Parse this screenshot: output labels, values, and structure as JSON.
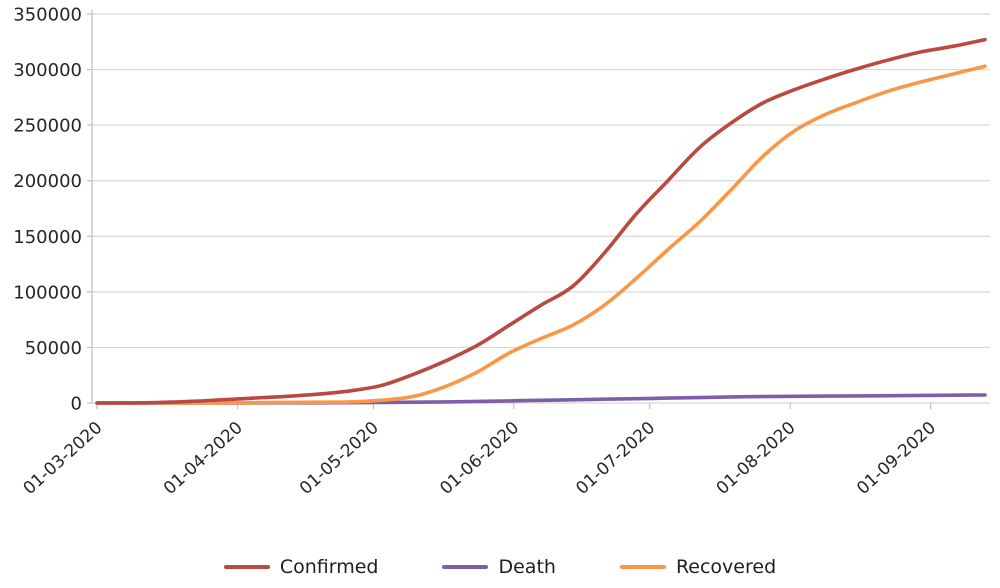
{
  "chart_data": {
    "type": "line",
    "title": "",
    "xlabel": "",
    "ylabel": "",
    "grid": "horizontal",
    "legend_position": "bottom",
    "ylim": [
      0,
      350000
    ],
    "y_ticks": [
      0,
      50000,
      100000,
      150000,
      200000,
      250000,
      300000,
      350000
    ],
    "x_tick_labels": [
      "01-03-2020",
      "01-04-2020",
      "01-05-2020",
      "01-06-2020",
      "01-07-2020",
      "01-08-2020",
      "01-09-2020"
    ],
    "x_range": [
      "01-03-2020",
      "13-09-2020"
    ],
    "dates": [
      "01-03-2020",
      "08-03-2020",
      "15-03-2020",
      "22-03-2020",
      "29-03-2020",
      "05-04-2020",
      "12-04-2020",
      "19-04-2020",
      "26-04-2020",
      "03-05-2020",
      "10-05-2020",
      "17-05-2020",
      "24-05-2020",
      "31-05-2020",
      "07-06-2020",
      "14-06-2020",
      "21-06-2020",
      "28-06-2020",
      "05-07-2020",
      "12-07-2020",
      "19-07-2020",
      "26-07-2020",
      "02-08-2020",
      "09-08-2020",
      "16-08-2020",
      "23-08-2020",
      "30-08-2020",
      "06-09-2020",
      "13-09-2020"
    ],
    "series": [
      {
        "name": "Confirmed",
        "color": "#b84a42",
        "values": [
          0,
          100,
          500,
          1500,
          3000,
          4500,
          6000,
          8000,
          11000,
          16000,
          26000,
          38000,
          52000,
          70000,
          88000,
          105000,
          135000,
          170000,
          200000,
          230000,
          252000,
          270000,
          282000,
          292000,
          301000,
          309000,
          316000,
          321000,
          327000
        ]
      },
      {
        "name": "Death",
        "color": "#7d5fa8",
        "values": [
          0,
          0,
          10,
          30,
          60,
          100,
          150,
          200,
          300,
          450,
          700,
          1000,
          1400,
          1900,
          2400,
          2900,
          3400,
          3900,
          4400,
          4900,
          5500,
          5800,
          6000,
          6200,
          6400,
          6600,
          6800,
          7000,
          7200
        ]
      },
      {
        "name": "Recovered",
        "color": "#f99746",
        "values": [
          0,
          0,
          0,
          50,
          150,
          300,
          500,
          700,
          1000,
          2500,
          6000,
          15000,
          28000,
          45000,
          58000,
          70000,
          88000,
          112000,
          138000,
          163000,
          192000,
          222000,
          245000,
          260000,
          271000,
          281000,
          289000,
          296000,
          303000
        ]
      }
    ],
    "colors": {
      "grid": "#d8d8d8",
      "axis": "#bfbfbf",
      "text": "#262626"
    }
  }
}
